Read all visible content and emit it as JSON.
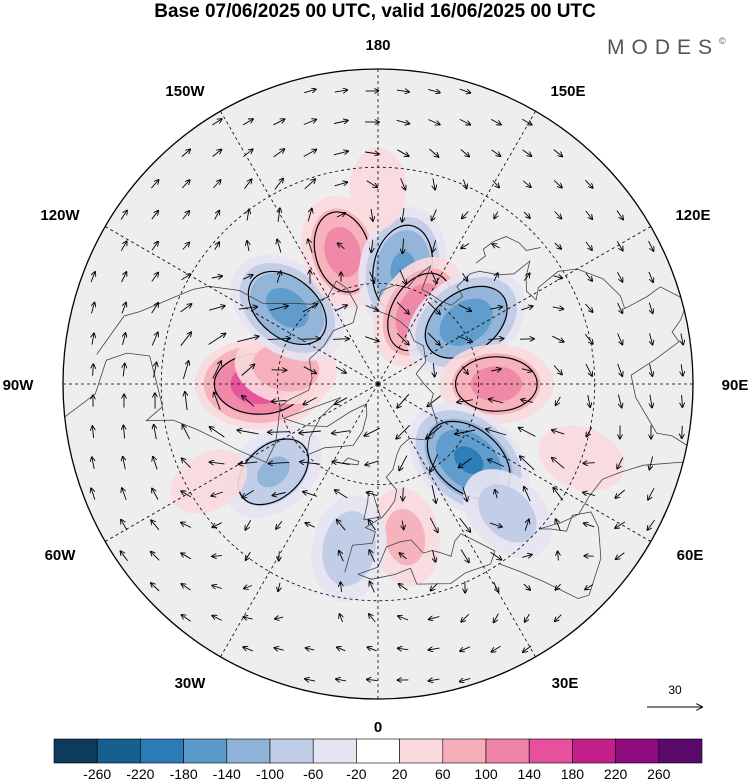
{
  "title": "Base 07/06/2025 00 UTC, valid 16/06/2025 00 UTC",
  "brand": {
    "name": "MODES",
    "mark": "©"
  },
  "longitude_labels": {
    "top": "180",
    "bottom": "0",
    "left": "90W",
    "right": "90E",
    "upper_left_1": "150W",
    "upper_left_2": "120W",
    "lower_left_1": "60W",
    "lower_left_2": "30W",
    "upper_right_1": "150E",
    "upper_right_2": "120E",
    "lower_right_1": "60E",
    "lower_right_2": "30E"
  },
  "vector_reference": {
    "value": "30"
  },
  "colorbar": {
    "colors": [
      "#0d3b5c",
      "#15608e",
      "#2b7bb6",
      "#5b9bcb",
      "#8fb3d8",
      "#bfcce6",
      "#e6e4f1",
      "#ffffff",
      "#fadadd",
      "#f5aeba",
      "#ef84a6",
      "#e6509c",
      "#c4208c",
      "#8f0a7f",
      "#5a0a6b"
    ],
    "labels": [
      "-260",
      "-220",
      "-180",
      "-140",
      "-100",
      "-60",
      "-20",
      "20",
      "60",
      "100",
      "140",
      "180",
      "220",
      "260"
    ]
  },
  "map": {
    "projection": "north-polar-stereographic",
    "field_anomalies": [
      {
        "lon": -90,
        "lat": 55,
        "value": 170
      },
      {
        "lon": -100,
        "lat": 62,
        "value": 90
      },
      {
        "lon": -130,
        "lat": 55,
        "value": -160
      },
      {
        "lon": -165,
        "lat": 50,
        "value": 120
      },
      {
        "lon": 168,
        "lat": 55,
        "value": -150
      },
      {
        "lon": 150,
        "lat": 65,
        "value": 130
      },
      {
        "lon": 125,
        "lat": 58,
        "value": -170
      },
      {
        "lon": 90,
        "lat": 55,
        "value": 120
      },
      {
        "lon": 50,
        "lat": 55,
        "value": -190
      },
      {
        "lon": 45,
        "lat": 38,
        "value": -90
      },
      {
        "lon": 10,
        "lat": 45,
        "value": 80
      },
      {
        "lon": -10,
        "lat": 42,
        "value": -100
      },
      {
        "lon": -50,
        "lat": 50,
        "value": -110
      },
      {
        "lon": -60,
        "lat": 35,
        "value": 50
      },
      {
        "lon": 70,
        "lat": 30,
        "value": 60
      },
      {
        "lon": 180,
        "lat": 35,
        "value": 50
      }
    ]
  }
}
